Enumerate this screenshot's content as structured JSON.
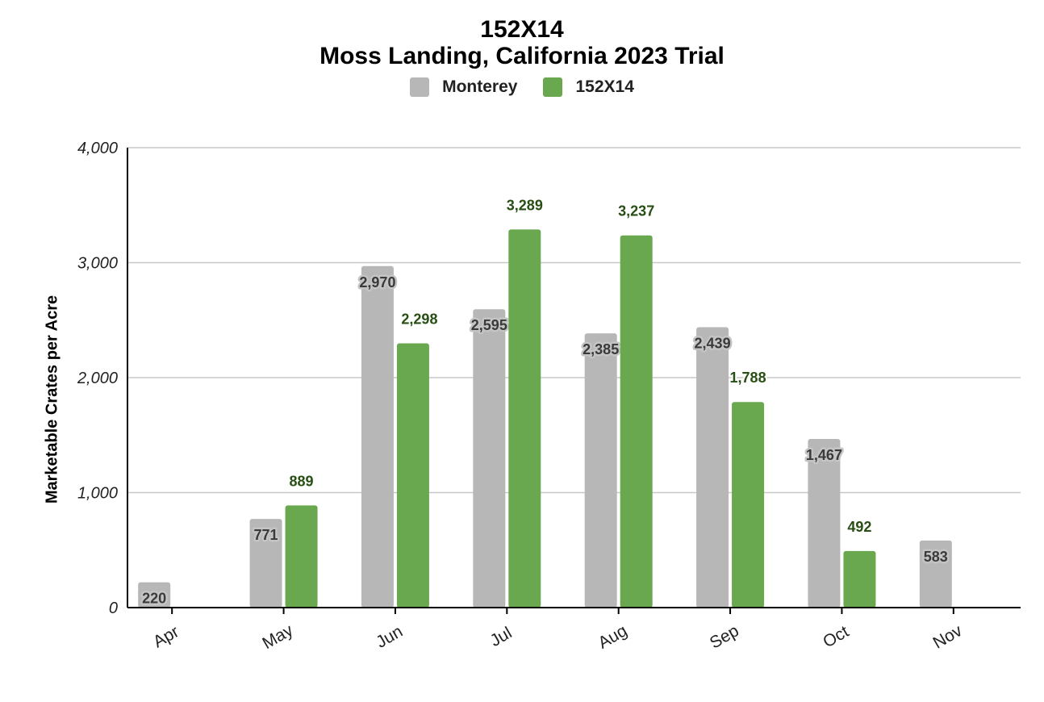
{
  "chart_data": {
    "type": "bar",
    "title": "152X14",
    "subtitle": "Moss Landing, California 2023 Trial",
    "ylabel": "Marketable Crates per Acre",
    "xlabel": "",
    "categories": [
      "Apr",
      "May",
      "Jun",
      "Jul",
      "Aug",
      "Sep",
      "Oct",
      "Nov"
    ],
    "series": [
      {
        "name": "Monterey",
        "color": "#b7b7b7",
        "label_color": "#3a3a3a",
        "values": [
          220,
          771,
          2970,
          2595,
          2385,
          2439,
          1467,
          583
        ]
      },
      {
        "name": "152X14",
        "color": "#6aa84f",
        "label_color": "#274e13",
        "values": [
          null,
          889,
          2298,
          3289,
          3237,
          1788,
          492,
          null
        ]
      }
    ],
    "yticks": [
      "0",
      "1,000",
      "2,000",
      "3,000",
      "4,000"
    ],
    "ylim": [
      0,
      4000
    ],
    "grid": true,
    "legend_position": "top"
  }
}
